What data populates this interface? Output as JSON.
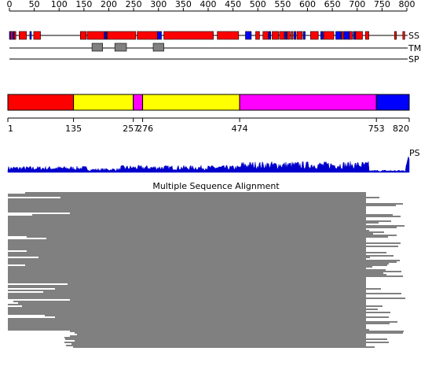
{
  "sequence_length": 820,
  "top_ruler": {
    "ticks": [
      "0",
      "50",
      "100",
      "150",
      "200",
      "250",
      "300",
      "350",
      "400",
      "450",
      "500",
      "550",
      "600",
      "650",
      "700",
      "750",
      "800"
    ]
  },
  "tracks": {
    "ss": {
      "label": "SS",
      "colors": {
        "helix": "#ff0000",
        "strand": "#0000ff"
      },
      "segments": [
        {
          "start": 0,
          "end": 3,
          "type": "strand"
        },
        {
          "start": 3,
          "end": 7,
          "type": "helix"
        },
        {
          "start": 7,
          "end": 10,
          "type": "strand"
        },
        {
          "start": 10,
          "end": 13,
          "type": "helix"
        },
        {
          "start": 20,
          "end": 35,
          "type": "helix"
        },
        {
          "start": 42,
          "end": 45,
          "type": "strand"
        },
        {
          "start": 50,
          "end": 64,
          "type": "helix"
        },
        {
          "start": 146,
          "end": 158,
          "type": "helix"
        },
        {
          "start": 160,
          "end": 195,
          "type": "helix"
        },
        {
          "start": 196,
          "end": 200,
          "type": "strand"
        },
        {
          "start": 201,
          "end": 260,
          "type": "helix"
        },
        {
          "start": 263,
          "end": 305,
          "type": "helix"
        },
        {
          "start": 305,
          "end": 313,
          "type": "strand"
        },
        {
          "start": 318,
          "end": 420,
          "type": "helix"
        },
        {
          "start": 428,
          "end": 472,
          "type": "helix"
        },
        {
          "start": 486,
          "end": 498,
          "type": "strand"
        },
        {
          "start": 507,
          "end": 515,
          "type": "helix"
        },
        {
          "start": 522,
          "end": 533,
          "type": "helix"
        },
        {
          "start": 534,
          "end": 538,
          "type": "strand"
        },
        {
          "start": 541,
          "end": 554,
          "type": "helix"
        },
        {
          "start": 556,
          "end": 566,
          "type": "helix"
        },
        {
          "start": 567,
          "end": 571,
          "type": "strand"
        },
        {
          "start": 572,
          "end": 578,
          "type": "helix"
        },
        {
          "start": 580,
          "end": 584,
          "type": "helix"
        },
        {
          "start": 586,
          "end": 590,
          "type": "strand"
        },
        {
          "start": 592,
          "end": 603,
          "type": "helix"
        },
        {
          "start": 605,
          "end": 609,
          "type": "strand"
        },
        {
          "start": 620,
          "end": 636,
          "type": "helix"
        },
        {
          "start": 641,
          "end": 646,
          "type": "strand"
        },
        {
          "start": 647,
          "end": 668,
          "type": "helix"
        },
        {
          "start": 672,
          "end": 683,
          "type": "strand"
        },
        {
          "start": 684,
          "end": 688,
          "type": "helix"
        },
        {
          "start": 689,
          "end": 700,
          "type": "strand"
        },
        {
          "start": 700,
          "end": 706,
          "type": "helix"
        },
        {
          "start": 708,
          "end": 712,
          "type": "strand"
        },
        {
          "start": 713,
          "end": 727,
          "type": "helix"
        },
        {
          "start": 733,
          "end": 740,
          "type": "helix"
        },
        {
          "start": 793,
          "end": 797,
          "type": "helix"
        },
        {
          "start": 810,
          "end": 814,
          "type": "helix"
        }
      ]
    },
    "tm": {
      "label": "TM",
      "color": "#808080",
      "segments": [
        {
          "start": 170,
          "end": 192
        },
        {
          "start": 217,
          "end": 241
        },
        {
          "start": 296,
          "end": 318
        }
      ]
    },
    "sp": {
      "label": "SP"
    }
  },
  "domains": {
    "segments": [
      {
        "start": 1,
        "end": 135,
        "color": "#ff0000"
      },
      {
        "start": 135,
        "end": 257,
        "color": "#ffff00"
      },
      {
        "start": 257,
        "end": 276,
        "color": "#ff00ff"
      },
      {
        "start": 276,
        "end": 474,
        "color": "#ffff00"
      },
      {
        "start": 474,
        "end": 753,
        "color": "#ff00ff"
      },
      {
        "start": 753,
        "end": 820,
        "color": "#0000ff"
      }
    ],
    "boundary_labels": [
      "1",
      "135",
      "257",
      "276",
      "474",
      "753",
      "820"
    ]
  },
  "ps": {
    "label": "PS",
    "color": "#0000cc"
  },
  "msa": {
    "title": "Multiple Sequence Alignment"
  }
}
